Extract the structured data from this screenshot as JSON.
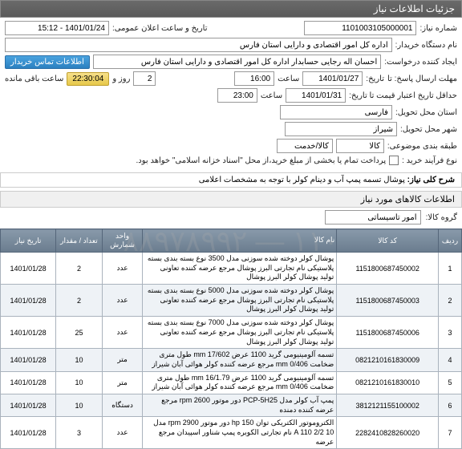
{
  "header": {
    "title": "جزئیات اطلاعات نیاز"
  },
  "form": {
    "need_no_label": "شماره نیاز:",
    "need_no": "1101003105000001",
    "announce_label": "تاریخ و ساعت اعلان عمومی:",
    "announce_val": "1401/01/24 - 15:12",
    "buyer_label": "نام دستگاه خریدار:",
    "buyer_val": "اداره کل امور اقتصادی و دارایی استان فارس",
    "requester_label": "ایجاد کننده درخواست:",
    "requester_val": "احسان اله  رجایی حسابدار اداره کل امور اقتصادی و دارایی استان فارس",
    "contact_btn": "اطلاعات تماس خریدار",
    "deadline_label": "مهلت ارسال پاسخ: تا",
    "deadline_date_label": "تاریخ:",
    "deadline_date": "1401/01/27",
    "deadline_time_label": "ساعت",
    "deadline_time": "16:00",
    "remain_day_val": "2",
    "remain_label": "روز و",
    "remain_time": "22:30:04",
    "remain_suffix": "ساعت باقی مانده",
    "credit_label": "حداقل تاریخ اعتبار قیمت تا تاریخ:",
    "credit_date": "1401/01/31",
    "credit_time_label": "ساعت",
    "credit_time": "23:00",
    "province_label": "استان محل تحویل:",
    "province_val": "فارسى",
    "city_label": "شهر محل تحویل:",
    "city_val": "شیراز",
    "pack_label": "طبقه بندی موضوعی:",
    "pack_goods": "کالا",
    "pack_service": "کالا/خدمت",
    "purchase_type_label": "نوع فرآیند خرید :",
    "purchase_note": "پرداخت تمام یا بخشی از مبلغ خرید،از محل \"اسناد خزانه اسلامی\" خواهد بود."
  },
  "desc": {
    "label": "شرح کلی نیاز:",
    "text": "پوشال تسمه پمپ آب و دینام کولر با توجه به مشخصات اعلامی"
  },
  "goods_header": "اطلاعات کالاهای مورد نیاز",
  "group": {
    "label": "گروه کالا:",
    "value": "امور تاسیساتی"
  },
  "cols": {
    "idx": "ردیف",
    "code": "کد کالا",
    "name": "نام کالا",
    "unit": "واحد شمارش",
    "qty": "تعداد / مقدار",
    "date": "تاریخ نیاز"
  },
  "rows": [
    {
      "i": "1",
      "code": "1151800687450002",
      "name": "پوشال کولر دوخته شده سوزنی مدل 3500 نوع بسته بندی بسته پلاستیکی نام تجارتی البرز پوشال مرجع عرضه کننده تعاونی تولید پوشال کولر البرز پوشال",
      "unit": "عدد",
      "qty": "2",
      "date": "1401/01/28"
    },
    {
      "i": "2",
      "code": "1151800687450003",
      "name": "پوشال کولر دوخته شده سوزنی مدل 5000 نوع بسته بندی بسته پلاستیکی نام تجارتی البرز پوشال مرجع عرضه کننده تعاونی تولید پوشال کولر البرز پوشال",
      "unit": "عدد",
      "qty": "2",
      "date": "1401/01/28"
    },
    {
      "i": "3",
      "code": "1151800687450006",
      "name": "پوشال کولر دوخته شده سوزنی مدل 7000 نوع بسته بندی بسته پلاستیکی نام تجارتی البرز پوشال مرجع عرضه کننده تعاونی تولید پوشال کولر البرز پوشال",
      "unit": "عدد",
      "qty": "25",
      "date": "1401/01/28"
    },
    {
      "i": "4",
      "code": "0821210161830009",
      "name": "تسمه آلومینیومی گرید 1100 عرض mm 17/602 طول متری ضخامت mm 0/406 مرجع عرضه کننده کولر هوائی آبان شیراز",
      "unit": "متر",
      "qty": "10",
      "date": "1401/01/28"
    },
    {
      "i": "5",
      "code": "0821210161830010",
      "name": "تسمه آلومینیومی گرید 1100 عرض mm 16/1.79 طول متری ضخامت mm 0/406 مرجع عرضه کننده کولر هوائی آبان شیراز",
      "unit": "متر",
      "qty": "10",
      "date": "1401/01/28"
    },
    {
      "i": "6",
      "code": "3812121155100002",
      "name": "پمپ آب کولر مدل PCP-5H25 دور موتور rpm 2600 مرجع عرضه کننده دمنده",
      "unit": "دستگاه",
      "qty": "10",
      "date": "1401/01/28"
    },
    {
      "i": "7",
      "code": "2282410828260020",
      "name": "الکتروموتور الکتریکی توان hp 150 دور موتور rpm 2900 مدل 10 A 110 2/2 نام تجارتی الکوبره پمپ شناور اسپیدان مرجع عرضه",
      "unit": "عدد",
      "qty": "3",
      "date": "1401/01/28"
    }
  ],
  "watermark": "۱۱۰ — ۸۸۹۷۸۹۹۲"
}
